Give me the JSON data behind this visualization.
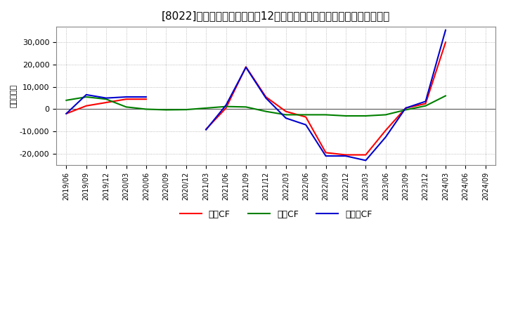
{
  "title": "[8022]　キャッシュフローの12か月移動合計の対前年同期増減額の推移",
  "ylabel": "（百万円）",
  "background_color": "#ffffff",
  "plot_bg_color": "#ffffff",
  "grid_color": "#aaaaaa",
  "ylim": [
    -25000,
    37000
  ],
  "yticks": [
    -20000,
    -10000,
    0,
    10000,
    20000,
    30000
  ],
  "x_labels": [
    "2019/06",
    "2019/09",
    "2019/12",
    "2020/03",
    "2020/06",
    "2020/09",
    "2020/12",
    "2021/03",
    "2021/06",
    "2021/09",
    "2021/12",
    "2022/03",
    "2022/06",
    "2022/09",
    "2022/12",
    "2023/03",
    "2023/06",
    "2023/09",
    "2023/12",
    "2024/03",
    "2024/06",
    "2024/09"
  ],
  "eigyo_cf": [
    -2000,
    1500,
    3000,
    4500,
    4500,
    null,
    null,
    -9000,
    500,
    19000,
    5500,
    -1000,
    -3500,
    -19500,
    -20500,
    -20500,
    -9500,
    500,
    2500,
    30000,
    null,
    null
  ],
  "toshi_cf": [
    4000,
    5500,
    4500,
    1000,
    0,
    -300,
    -200,
    500,
    1200,
    1000,
    -1000,
    -2500,
    -2500,
    -2500,
    -3000,
    -3000,
    -2500,
    -300,
    1500,
    6000,
    null,
    null
  ],
  "free_cf": [
    -2000,
    6500,
    5000,
    5500,
    5500,
    null,
    null,
    -9200,
    1800,
    18800,
    5000,
    -4000,
    -7000,
    -21000,
    -21000,
    -23000,
    -12500,
    500,
    3500,
    35500,
    null,
    null
  ],
  "eigyo_color": "#ff0000",
  "toshi_color": "#008000",
  "free_color": "#0000cd",
  "legend_labels": [
    "営業CF",
    "投資CF",
    "フリーCF"
  ]
}
